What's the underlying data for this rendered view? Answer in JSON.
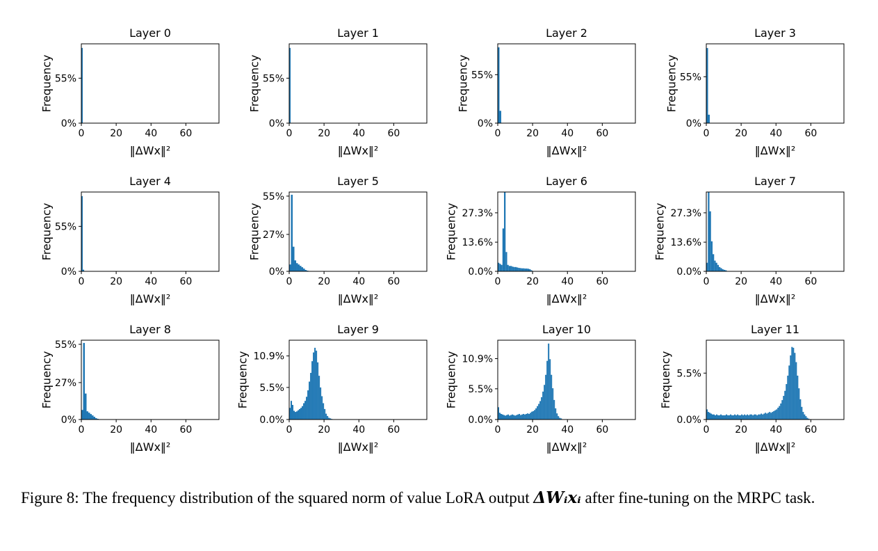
{
  "figure": {
    "caption_prefix": "Figure 8: The frequency distribution of the squared norm of value LoRA output",
    "caption_math": "ΔWᵢxᵢ",
    "caption_suffix": "after fine-tuning on the MRPC task."
  },
  "colors": {
    "bar": "#1f77b4",
    "axis": "#000000",
    "background": "#ffffff"
  },
  "chart_data": [
    {
      "type": "bar",
      "title": "Layer 0",
      "xlabel": "‖ΔWx‖²",
      "ylabel": "Frequency",
      "xlim": [
        0,
        79
      ],
      "ylim": [
        0,
        97
      ],
      "xticks": [
        0,
        20,
        40,
        60
      ],
      "yticks": [
        {
          "value": 0,
          "label": "0%"
        },
        {
          "value": 55,
          "label": "55%"
        }
      ],
      "bin_start": 0,
      "bin_width": 0.8,
      "values": [
        92
      ]
    },
    {
      "type": "bar",
      "title": "Layer 1",
      "xlabel": "‖ΔWx‖²",
      "ylabel": "Frequency",
      "xlim": [
        0,
        79
      ],
      "ylim": [
        0,
        97
      ],
      "xticks": [
        0,
        20,
        40,
        60
      ],
      "yticks": [
        {
          "value": 0,
          "label": "0%"
        },
        {
          "value": 55,
          "label": "55%"
        }
      ],
      "bin_start": 0,
      "bin_width": 0.8,
      "values": [
        92
      ]
    },
    {
      "type": "bar",
      "title": "Layer 2",
      "xlabel": "‖ΔWx‖²",
      "ylabel": "Frequency",
      "xlim": [
        0,
        79
      ],
      "ylim": [
        0,
        90
      ],
      "xticks": [
        0,
        20,
        40,
        60
      ],
      "yticks": [
        {
          "value": 0,
          "label": "0%"
        },
        {
          "value": 55,
          "label": "55%"
        }
      ],
      "bin_start": 0,
      "bin_width": 1.0,
      "values": [
        86,
        14
      ]
    },
    {
      "type": "bar",
      "title": "Layer 3",
      "xlabel": "‖ΔWx‖²",
      "ylabel": "Frequency",
      "xlim": [
        0,
        79
      ],
      "ylim": [
        0,
        94
      ],
      "xticks": [
        0,
        20,
        40,
        60
      ],
      "yticks": [
        {
          "value": 0,
          "label": "0%"
        },
        {
          "value": 55,
          "label": "55%"
        }
      ],
      "bin_start": 0,
      "bin_width": 1.0,
      "values": [
        89,
        10
      ]
    },
    {
      "type": "bar",
      "title": "Layer 4",
      "xlabel": "‖ΔWx‖²",
      "ylabel": "Frequency",
      "xlim": [
        0,
        79
      ],
      "ylim": [
        0,
        97
      ],
      "xticks": [
        0,
        20,
        40,
        60
      ],
      "yticks": [
        {
          "value": 0,
          "label": "0%"
        },
        {
          "value": 55,
          "label": "55%"
        }
      ],
      "bin_start": 0,
      "bin_width": 0.8,
      "values": [
        92,
        2
      ]
    },
    {
      "type": "bar",
      "title": "Layer 5",
      "xlabel": "‖ΔWx‖²",
      "ylabel": "Frequency",
      "xlim": [
        0,
        79
      ],
      "ylim": [
        0,
        58
      ],
      "xticks": [
        0,
        20,
        40,
        60
      ],
      "yticks": [
        {
          "value": 0,
          "label": "0%"
        },
        {
          "value": 27,
          "label": "27%"
        },
        {
          "value": 55,
          "label": "55%"
        }
      ],
      "bin_start": 0,
      "bin_width": 1.0,
      "values": [
        5,
        56,
        18,
        8,
        6,
        5,
        4,
        3,
        2,
        1,
        0.5
      ]
    },
    {
      "type": "bar",
      "title": "Layer 6",
      "xlabel": "‖ΔWx‖²",
      "ylabel": "Frequency",
      "xlim": [
        0,
        79
      ],
      "ylim": [
        0,
        37
      ],
      "xticks": [
        0,
        20,
        40,
        60
      ],
      "yticks": [
        {
          "value": 0,
          "label": "0.0%"
        },
        {
          "value": 13.6,
          "label": "13.6%"
        },
        {
          "value": 27.3,
          "label": "27.3%"
        }
      ],
      "bin_start": 0,
      "bin_width": 0.9,
      "values": [
        4,
        3.5,
        3,
        20,
        37,
        9,
        3,
        2.5,
        2.5,
        2.2,
        2,
        2,
        1.8,
        1.6,
        1.5,
        1.4,
        1.4,
        1.3,
        1.3,
        1.2,
        1.0,
        0.5
      ]
    },
    {
      "type": "bar",
      "title": "Layer 7",
      "xlabel": "‖ΔWx‖²",
      "ylabel": "Frequency",
      "xlim": [
        0,
        79
      ],
      "ylim": [
        0,
        37
      ],
      "xticks": [
        0,
        20,
        40,
        60
      ],
      "yticks": [
        {
          "value": 0,
          "label": "0.0%"
        },
        {
          "value": 13.6,
          "label": "13.6%"
        },
        {
          "value": 27.3,
          "label": "27.3%"
        }
      ],
      "bin_start": 0,
      "bin_width": 0.9,
      "values": [
        4,
        37,
        28,
        14,
        8,
        5,
        4,
        3,
        2,
        1.5,
        1,
        0.7,
        0.5
      ]
    },
    {
      "type": "bar",
      "title": "Layer 8",
      "xlabel": "‖ΔWx‖²",
      "ylabel": "Frequency",
      "xlim": [
        0,
        79
      ],
      "ylim": [
        0,
        58
      ],
      "xticks": [
        0,
        20,
        40,
        60
      ],
      "yticks": [
        {
          "value": 0,
          "label": "0%"
        },
        {
          "value": 27,
          "label": "27%"
        },
        {
          "value": 55,
          "label": "55%"
        }
      ],
      "bin_start": 0,
      "bin_width": 1.0,
      "values": [
        7,
        56,
        19,
        6,
        5,
        4,
        3,
        2,
        1,
        0.5
      ]
    },
    {
      "type": "bar",
      "title": "Layer 9",
      "xlabel": "‖ΔWx‖²",
      "ylabel": "Frequency",
      "xlim": [
        0,
        79
      ],
      "ylim": [
        0,
        13.6
      ],
      "xticks": [
        0,
        20,
        40,
        60
      ],
      "yticks": [
        {
          "value": 0,
          "label": "0.0%"
        },
        {
          "value": 5.5,
          "label": "5.5%"
        },
        {
          "value": 10.9,
          "label": "10.9%"
        }
      ],
      "bin_start": 0,
      "bin_width": 0.8,
      "values": [
        2,
        3.2,
        2.5,
        1.5,
        1.3,
        1.4,
        1.6,
        1.8,
        2,
        2.3,
        2.8,
        3.2,
        3.9,
        5,
        6.5,
        8,
        10,
        11.5,
        12.3,
        11.8,
        9.8,
        7.5,
        5.5,
        4,
        2.8,
        1.8,
        1,
        0.6,
        0.3,
        0.2,
        0.1
      ]
    },
    {
      "type": "bar",
      "title": "Layer 10",
      "xlabel": "‖ΔWx‖²",
      "ylabel": "Frequency",
      "xlim": [
        0,
        79
      ],
      "ylim": [
        0,
        14.2
      ],
      "xticks": [
        0,
        20,
        40,
        60
      ],
      "yticks": [
        {
          "value": 0,
          "label": "0.0%"
        },
        {
          "value": 5.5,
          "label": "5.5%"
        },
        {
          "value": 10.9,
          "label": "10.9%"
        }
      ],
      "bin_start": 0,
      "bin_width": 0.8,
      "values": [
        2.2,
        1.2,
        1,
        0.9,
        0.8,
        0.7,
        0.8,
        0.9,
        0.7,
        0.8,
        0.9,
        0.8,
        0.7,
        0.8,
        0.9,
        1,
        0.8,
        0.9,
        1,
        0.9,
        1,
        1.1,
        1,
        1.2,
        1.4,
        1.5,
        1.7,
        2,
        2.4,
        2.8,
        3.3,
        4,
        5,
        6.2,
        8,
        10.5,
        13.6,
        10.8,
        8,
        5.6,
        3.5,
        2,
        1.1,
        0.6,
        0.3,
        0.2
      ]
    },
    {
      "type": "bar",
      "title": "Layer 11",
      "xlabel": "‖ΔWx‖²",
      "ylabel": "Frequency",
      "xlim": [
        0,
        79
      ],
      "ylim": [
        0,
        9.4
      ],
      "xticks": [
        0,
        20,
        40,
        60
      ],
      "yticks": [
        {
          "value": 0,
          "label": "0.0%"
        },
        {
          "value": 5.5,
          "label": "5.5%"
        }
      ],
      "bin_start": 0,
      "bin_width": 0.8,
      "values": [
        1.2,
        0.9,
        0.8,
        0.7,
        0.6,
        0.6,
        0.5,
        0.6,
        0.5,
        0.5,
        0.6,
        0.5,
        0.5,
        0.5,
        0.6,
        0.5,
        0.5,
        0.6,
        0.5,
        0.5,
        0.6,
        0.5,
        0.6,
        0.5,
        0.5,
        0.6,
        0.5,
        0.6,
        0.5,
        0.6,
        0.5,
        0.6,
        0.6,
        0.5,
        0.6,
        0.6,
        0.5,
        0.6,
        0.6,
        0.7,
        0.6,
        0.7,
        0.8,
        0.7,
        0.8,
        0.9,
        0.8,
        0.9,
        1,
        1.1,
        1.2,
        1.4,
        1.6,
        1.9,
        2.3,
        2.8,
        3.4,
        4.2,
        5.2,
        6.4,
        7.6,
        8.6,
        8.5,
        7.9,
        6.8,
        5.2,
        3.7,
        2.4,
        1.5,
        0.9,
        0.6,
        0.4,
        0.2,
        0.1
      ]
    }
  ]
}
